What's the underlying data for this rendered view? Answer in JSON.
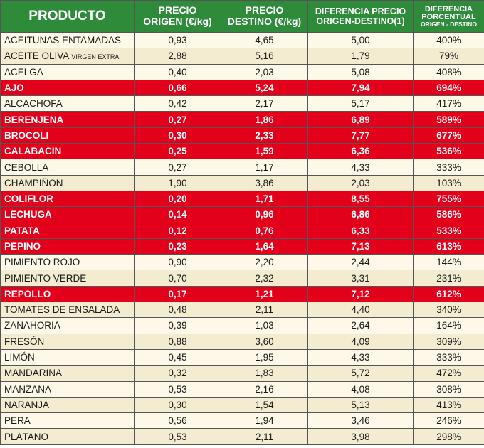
{
  "header": {
    "producto": "PRODUCTO",
    "precio_origen_l1": "PRECIO",
    "precio_origen_l2": "ORIGEN (€/kg)",
    "precio_destino_l1": "PRECIO",
    "precio_destino_l2": "DESTINO (€/kg)",
    "diferencia_l1": "DIFERENCIA PRECIO",
    "diferencia_l2": "ORIGEN-DESTINO(1)",
    "porcentual_l1": "DIFERENCIA",
    "porcentual_l2": "PORCENTUAL",
    "porcentual_l3": "ORIGEN - DESTINO"
  },
  "colors": {
    "header_green": "#2e8b3a",
    "highlight_red": "#e2001a",
    "row_light": "#fdf8e8",
    "row_dark": "#f3ecd0"
  },
  "rows": [
    {
      "producto": "ACEITUNAS ENTAMADAS",
      "extra": "",
      "origen": "0,93",
      "destino": "4,65",
      "diferencia": "5,00",
      "porcentual": "400%",
      "highlight": false
    },
    {
      "producto": "ACEITE OLIVA",
      "extra": "VIRGEN EXTRA",
      "origen": "2,88",
      "destino": "5,16",
      "diferencia": "1,79",
      "porcentual": "79%",
      "highlight": false
    },
    {
      "producto": "ACELGA",
      "extra": "",
      "origen": "0,40",
      "destino": "2,03",
      "diferencia": "5,08",
      "porcentual": "408%",
      "highlight": false
    },
    {
      "producto": "AJO",
      "extra": "",
      "origen": "0,66",
      "destino": "5,24",
      "diferencia": "7,94",
      "porcentual": "694%",
      "highlight": true
    },
    {
      "producto": "ALCACHOFA",
      "extra": "",
      "origen": "0,42",
      "destino": "2,17",
      "diferencia": "5,17",
      "porcentual": "417%",
      "highlight": false
    },
    {
      "producto": "BERENJENA",
      "extra": "",
      "origen": "0,27",
      "destino": "1,86",
      "diferencia": "6,89",
      "porcentual": "589%",
      "highlight": true
    },
    {
      "producto": "BROCOLI",
      "extra": "",
      "origen": "0,30",
      "destino": "2,33",
      "diferencia": "7,77",
      "porcentual": "677%",
      "highlight": true
    },
    {
      "producto": "CALABACIN",
      "extra": "",
      "origen": "0,25",
      "destino": "1,59",
      "diferencia": "6,36",
      "porcentual": "536%",
      "highlight": true
    },
    {
      "producto": "CEBOLLA",
      "extra": "",
      "origen": "0,27",
      "destino": "1,17",
      "diferencia": "4,33",
      "porcentual": "333%",
      "highlight": false
    },
    {
      "producto": "CHAMPIÑON",
      "extra": "",
      "origen": "1,90",
      "destino": "3,86",
      "diferencia": "2,03",
      "porcentual": "103%",
      "highlight": false
    },
    {
      "producto": "COLIFLOR",
      "extra": "",
      "origen": "0,20",
      "destino": "1,71",
      "diferencia": "8,55",
      "porcentual": "755%",
      "highlight": true
    },
    {
      "producto": "LECHUGA",
      "extra": "",
      "origen": "0,14",
      "destino": "0,96",
      "diferencia": "6,86",
      "porcentual": "586%",
      "highlight": true
    },
    {
      "producto": "PATATA",
      "extra": "",
      "origen": "0,12",
      "destino": "0,76",
      "diferencia": "6,33",
      "porcentual": "533%",
      "highlight": true
    },
    {
      "producto": "PEPINO",
      "extra": "",
      "origen": "0,23",
      "destino": "1,64",
      "diferencia": "7,13",
      "porcentual": "613%",
      "highlight": true
    },
    {
      "producto": "PIMIENTO ROJO",
      "extra": "",
      "origen": "0,90",
      "destino": "2,20",
      "diferencia": "2,44",
      "porcentual": "144%",
      "highlight": false
    },
    {
      "producto": "PIMIENTO VERDE",
      "extra": "",
      "origen": "0,70",
      "destino": "2,32",
      "diferencia": "3,31",
      "porcentual": "231%",
      "highlight": false
    },
    {
      "producto": "REPOLLO",
      "extra": "",
      "origen": "0,17",
      "destino": "1,21",
      "diferencia": "7,12",
      "porcentual": "612%",
      "highlight": true
    },
    {
      "producto": "TOMATES DE ENSALADA",
      "extra": "",
      "origen": "0,48",
      "destino": "2,11",
      "diferencia": "4,40",
      "porcentual": "340%",
      "highlight": false
    },
    {
      "producto": "ZANAHORIA",
      "extra": "",
      "origen": "0,39",
      "destino": "1,03",
      "diferencia": "2,64",
      "porcentual": "164%",
      "highlight": false
    },
    {
      "producto": "FRESÓN",
      "extra": "",
      "origen": "0,88",
      "destino": "3,60",
      "diferencia": "4,09",
      "porcentual": "309%",
      "highlight": false
    },
    {
      "producto": "LIMÓN",
      "extra": "",
      "origen": "0,45",
      "destino": "1,95",
      "diferencia": "4,33",
      "porcentual": "333%",
      "highlight": false
    },
    {
      "producto": "MANDARINA",
      "extra": "",
      "origen": "0,32",
      "destino": "1,83",
      "diferencia": "5,72",
      "porcentual": "472%",
      "highlight": false
    },
    {
      "producto": "MANZANA",
      "extra": "",
      "origen": "0,53",
      "destino": "2,16",
      "diferencia": "4,08",
      "porcentual": "308%",
      "highlight": false
    },
    {
      "producto": "NARANJA",
      "extra": "",
      "origen": "0,30",
      "destino": "1,54",
      "diferencia": "5,13",
      "porcentual": "413%",
      "highlight": false
    },
    {
      "producto": "PERA",
      "extra": "",
      "origen": "0,56",
      "destino": "1,94",
      "diferencia": "3,46",
      "porcentual": "246%",
      "highlight": false
    },
    {
      "producto": "PLÁTANO",
      "extra": "",
      "origen": "0,53",
      "destino": "2,11",
      "diferencia": "3,98",
      "porcentual": "298%",
      "highlight": false
    }
  ]
}
